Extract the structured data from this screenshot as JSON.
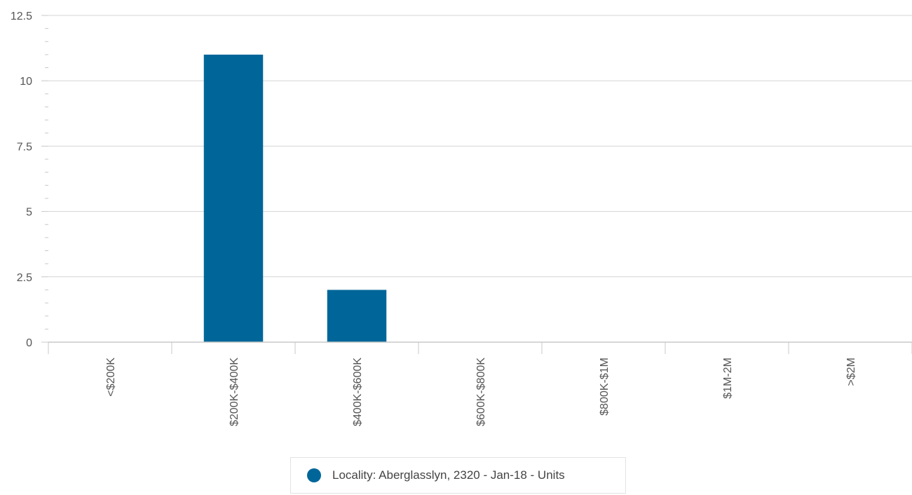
{
  "chart_data": {
    "type": "bar",
    "categories": [
      "<$200K",
      "$200K-$400K",
      "$400K-$600K",
      "$600K-$800K",
      "$800K-$1M",
      "$1M-2M",
      ">$2M"
    ],
    "series": [
      {
        "name": "Locality: Aberglasslyn, 2320 - Jan-18 - Units",
        "values": [
          0,
          11,
          2,
          0,
          0,
          0,
          0
        ]
      }
    ],
    "y_ticks": [
      "0",
      "2.5",
      "5",
      "7.5",
      "10",
      "12.5"
    ],
    "ylim": [
      0,
      12.5
    ],
    "grid": true,
    "legend_position": "bottom",
    "colors": {
      "bar": "#006699",
      "grid": "#d5d5d5",
      "axis": "#c8c8c8"
    }
  }
}
